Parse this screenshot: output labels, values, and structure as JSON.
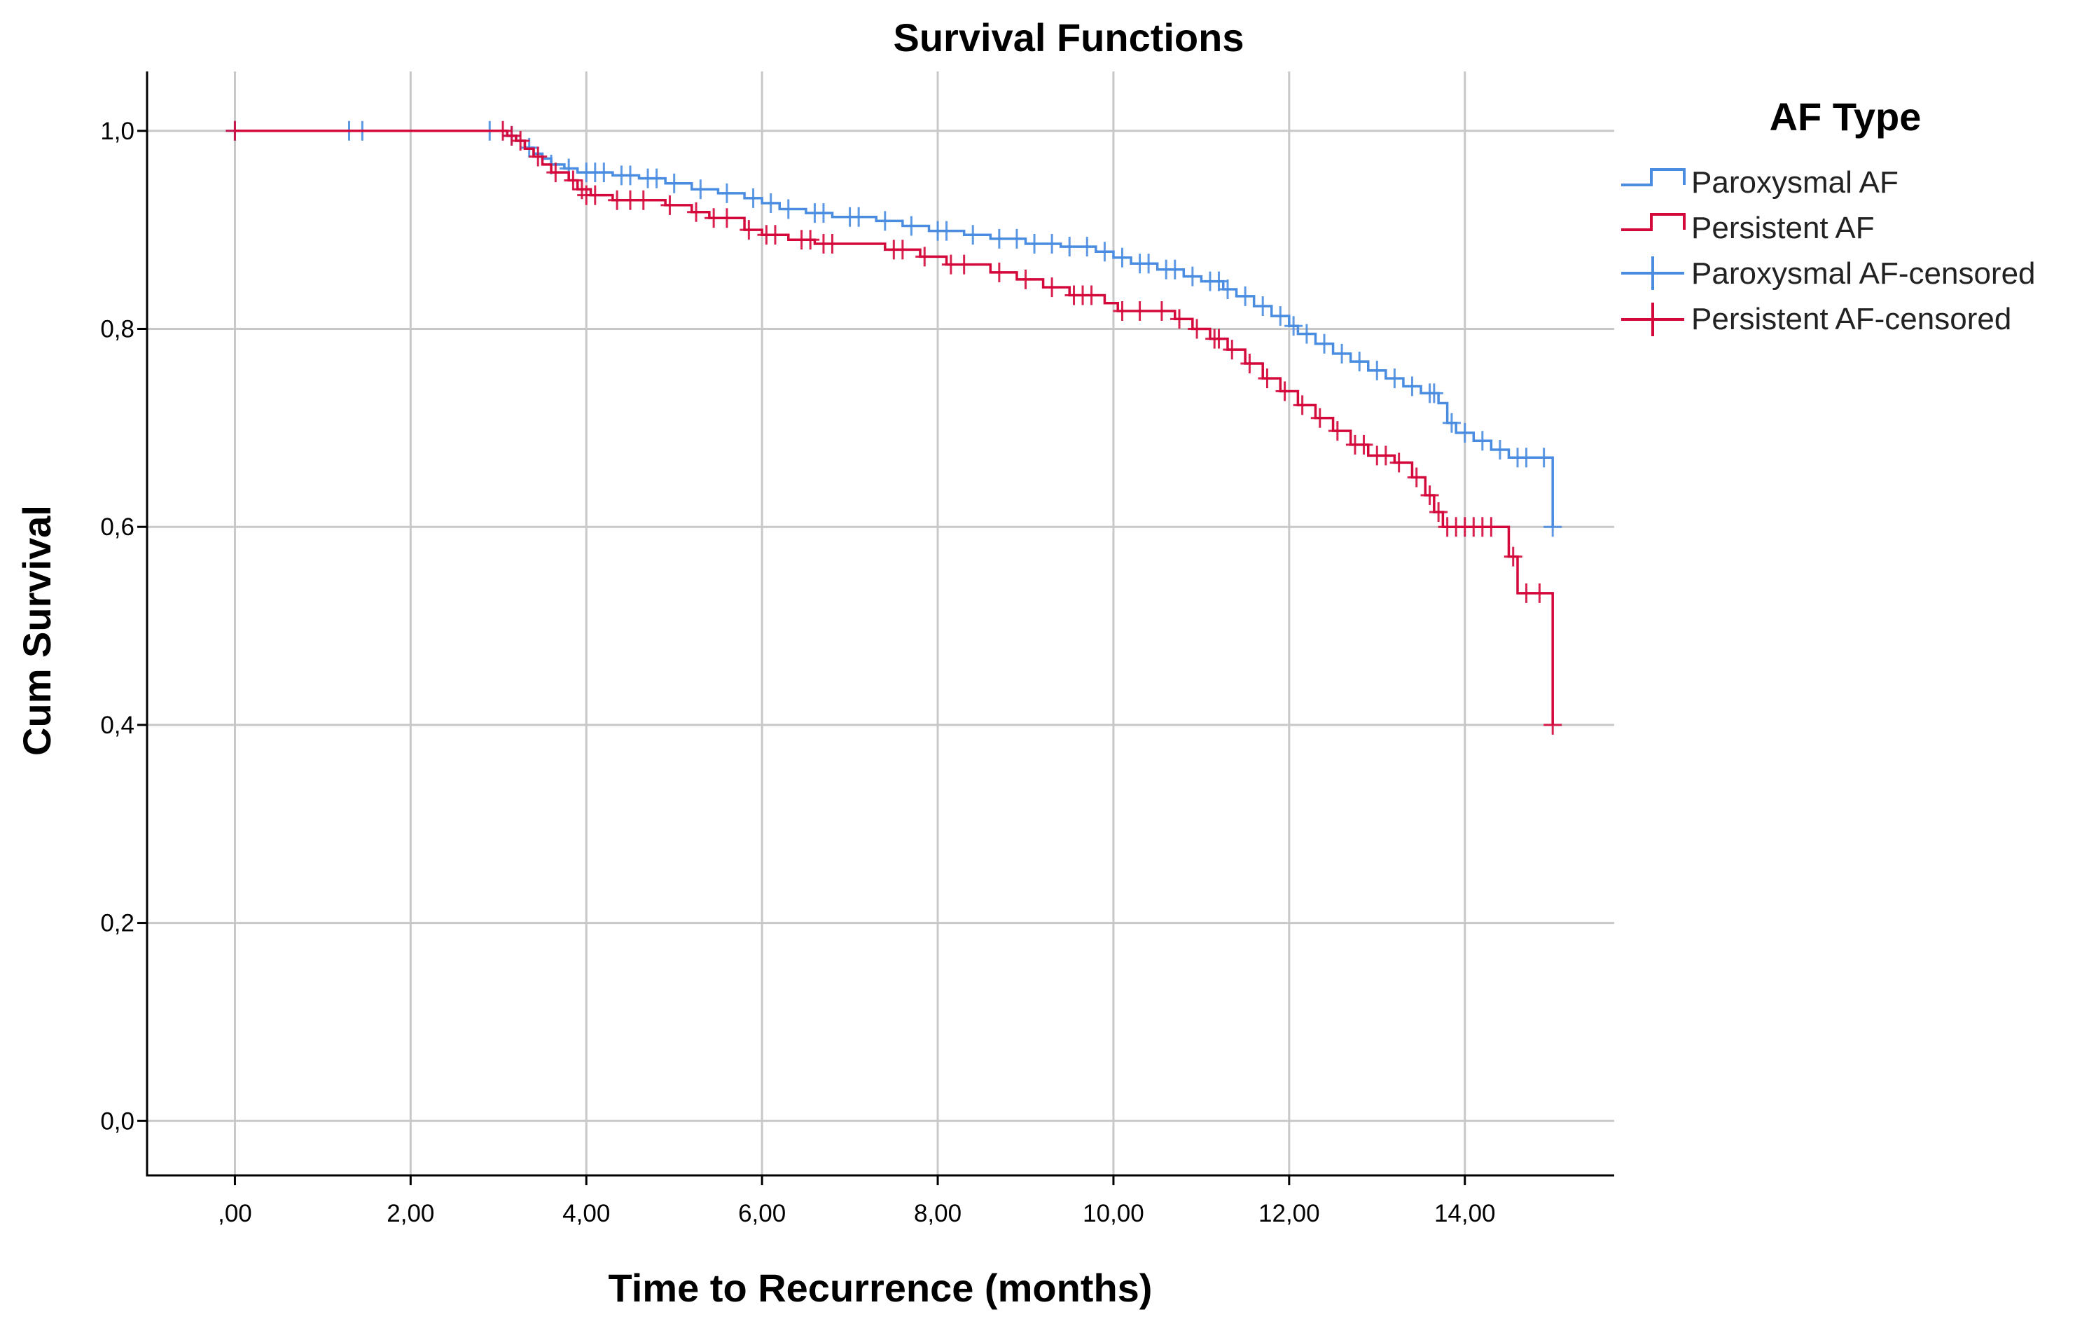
{
  "chart_data": {
    "type": "line",
    "title": "Survival Functions",
    "xlabel": "Time to Recurrence (months)",
    "ylabel": "Cum Survival",
    "xlim": [
      -1,
      15.7
    ],
    "ylim": [
      -0.055,
      1.06
    ],
    "x_ticks": [
      0,
      2,
      4,
      6,
      8,
      10,
      12,
      14
    ],
    "x_tick_labels": [
      ",00",
      "2,00",
      "4,00",
      "6,00",
      "8,00",
      "10,00",
      "12,00",
      "14,00"
    ],
    "y_ticks": [
      0,
      0.2,
      0.4,
      0.6,
      0.8,
      1.0
    ],
    "y_tick_labels": [
      "0,0",
      "0,2",
      "0,4",
      "0,6",
      "0,8",
      "1,0"
    ],
    "grid": true,
    "legend_title": "AF Type",
    "legend_position": "top-right",
    "legend_labels": [
      "Paroxysmal AF",
      "Persistent AF",
      "Paroxysmal AF-censored",
      "Persistent AF-censored"
    ],
    "series": [
      {
        "name": "Paroxysmal AF",
        "color": "#4a8de0",
        "steps": [
          [
            0,
            1.0
          ],
          [
            3.0,
            1.0
          ],
          [
            3.1,
            0.995
          ],
          [
            3.2,
            0.99
          ],
          [
            3.3,
            0.983
          ],
          [
            3.4,
            0.977
          ],
          [
            3.5,
            0.972
          ],
          [
            3.6,
            0.966
          ],
          [
            3.75,
            0.962
          ],
          [
            3.9,
            0.958
          ],
          [
            4.3,
            0.955
          ],
          [
            4.6,
            0.952
          ],
          [
            4.9,
            0.947
          ],
          [
            5.2,
            0.941
          ],
          [
            5.5,
            0.937
          ],
          [
            5.8,
            0.932
          ],
          [
            6.0,
            0.927
          ],
          [
            6.2,
            0.921
          ],
          [
            6.5,
            0.917
          ],
          [
            6.8,
            0.913
          ],
          [
            7.3,
            0.909
          ],
          [
            7.6,
            0.904
          ],
          [
            7.9,
            0.899
          ],
          [
            8.3,
            0.895
          ],
          [
            8.6,
            0.891
          ],
          [
            9.0,
            0.886
          ],
          [
            9.4,
            0.883
          ],
          [
            9.8,
            0.878
          ],
          [
            10.0,
            0.872
          ],
          [
            10.2,
            0.866
          ],
          [
            10.5,
            0.86
          ],
          [
            10.8,
            0.853
          ],
          [
            11.0,
            0.848
          ],
          [
            11.25,
            0.84
          ],
          [
            11.4,
            0.833
          ],
          [
            11.6,
            0.823
          ],
          [
            11.8,
            0.813
          ],
          [
            12.0,
            0.803
          ],
          [
            12.1,
            0.795
          ],
          [
            12.3,
            0.785
          ],
          [
            12.5,
            0.775
          ],
          [
            12.7,
            0.767
          ],
          [
            12.9,
            0.758
          ],
          [
            13.1,
            0.75
          ],
          [
            13.3,
            0.742
          ],
          [
            13.5,
            0.735
          ],
          [
            13.7,
            0.725
          ],
          [
            13.8,
            0.705
          ],
          [
            13.9,
            0.695
          ],
          [
            14.1,
            0.687
          ],
          [
            14.3,
            0.678
          ],
          [
            14.5,
            0.67
          ],
          [
            15.0,
            0.6
          ]
        ],
        "end_x": 15.0,
        "censored": [
          [
            0,
            1.0
          ],
          [
            1.3,
            1.0
          ],
          [
            1.45,
            1.0
          ],
          [
            2.9,
            1.0
          ],
          [
            3.15,
            0.995
          ],
          [
            3.35,
            0.983
          ],
          [
            3.6,
            0.966
          ],
          [
            3.8,
            0.962
          ],
          [
            4.0,
            0.958
          ],
          [
            4.1,
            0.958
          ],
          [
            4.2,
            0.958
          ],
          [
            4.4,
            0.955
          ],
          [
            4.5,
            0.955
          ],
          [
            4.7,
            0.952
          ],
          [
            4.8,
            0.952
          ],
          [
            5.0,
            0.947
          ],
          [
            5.3,
            0.941
          ],
          [
            5.6,
            0.937
          ],
          [
            5.9,
            0.932
          ],
          [
            6.1,
            0.927
          ],
          [
            6.3,
            0.921
          ],
          [
            6.6,
            0.917
          ],
          [
            6.7,
            0.917
          ],
          [
            7.0,
            0.913
          ],
          [
            7.1,
            0.913
          ],
          [
            7.4,
            0.909
          ],
          [
            7.7,
            0.904
          ],
          [
            8.0,
            0.899
          ],
          [
            8.1,
            0.899
          ],
          [
            8.4,
            0.895
          ],
          [
            8.7,
            0.891
          ],
          [
            8.9,
            0.891
          ],
          [
            9.1,
            0.886
          ],
          [
            9.3,
            0.886
          ],
          [
            9.5,
            0.883
          ],
          [
            9.7,
            0.883
          ],
          [
            9.9,
            0.878
          ],
          [
            10.1,
            0.872
          ],
          [
            10.3,
            0.866
          ],
          [
            10.4,
            0.866
          ],
          [
            10.6,
            0.86
          ],
          [
            10.7,
            0.86
          ],
          [
            10.9,
            0.853
          ],
          [
            11.1,
            0.848
          ],
          [
            11.2,
            0.848
          ],
          [
            11.3,
            0.84
          ],
          [
            11.5,
            0.833
          ],
          [
            11.7,
            0.823
          ],
          [
            11.9,
            0.813
          ],
          [
            12.05,
            0.803
          ],
          [
            12.2,
            0.795
          ],
          [
            12.4,
            0.785
          ],
          [
            12.6,
            0.775
          ],
          [
            12.8,
            0.767
          ],
          [
            13.0,
            0.758
          ],
          [
            13.2,
            0.75
          ],
          [
            13.4,
            0.742
          ],
          [
            13.6,
            0.735
          ],
          [
            13.65,
            0.735
          ],
          [
            13.85,
            0.705
          ],
          [
            14.0,
            0.695
          ],
          [
            14.2,
            0.687
          ],
          [
            14.4,
            0.678
          ],
          [
            14.6,
            0.67
          ],
          [
            14.7,
            0.67
          ],
          [
            14.9,
            0.67
          ],
          [
            15.0,
            0.6
          ]
        ]
      },
      {
        "name": "Persistent AF",
        "color": "#d4093b",
        "steps": [
          [
            0,
            1.0
          ],
          [
            3.0,
            1.0
          ],
          [
            3.1,
            0.995
          ],
          [
            3.2,
            0.99
          ],
          [
            3.3,
            0.982
          ],
          [
            3.4,
            0.974
          ],
          [
            3.5,
            0.966
          ],
          [
            3.6,
            0.958
          ],
          [
            3.8,
            0.95
          ],
          [
            3.9,
            0.941
          ],
          [
            4.05,
            0.935
          ],
          [
            4.3,
            0.93
          ],
          [
            4.9,
            0.925
          ],
          [
            5.2,
            0.918
          ],
          [
            5.4,
            0.912
          ],
          [
            5.8,
            0.9
          ],
          [
            6.0,
            0.895
          ],
          [
            6.3,
            0.89
          ],
          [
            6.6,
            0.886
          ],
          [
            7.4,
            0.88
          ],
          [
            7.8,
            0.873
          ],
          [
            8.1,
            0.865
          ],
          [
            8.6,
            0.857
          ],
          [
            8.9,
            0.85
          ],
          [
            9.2,
            0.842
          ],
          [
            9.5,
            0.834
          ],
          [
            9.9,
            0.826
          ],
          [
            10.05,
            0.818
          ],
          [
            10.7,
            0.81
          ],
          [
            10.9,
            0.8
          ],
          [
            11.1,
            0.79
          ],
          [
            11.3,
            0.779
          ],
          [
            11.5,
            0.765
          ],
          [
            11.7,
            0.75
          ],
          [
            11.9,
            0.737
          ],
          [
            12.1,
            0.723
          ],
          [
            12.3,
            0.71
          ],
          [
            12.5,
            0.697
          ],
          [
            12.7,
            0.683
          ],
          [
            12.9,
            0.672
          ],
          [
            13.2,
            0.665
          ],
          [
            13.4,
            0.65
          ],
          [
            13.55,
            0.632
          ],
          [
            13.65,
            0.615
          ],
          [
            13.75,
            0.6
          ],
          [
            14.5,
            0.57
          ],
          [
            14.6,
            0.533
          ],
          [
            15.0,
            0.4
          ]
        ],
        "end_x": 15.0,
        "censored": [
          [
            0,
            1.0
          ],
          [
            3.05,
            1.0
          ],
          [
            3.15,
            0.995
          ],
          [
            3.25,
            0.99
          ],
          [
            3.45,
            0.974
          ],
          [
            3.65,
            0.958
          ],
          [
            3.85,
            0.95
          ],
          [
            3.95,
            0.941
          ],
          [
            4.0,
            0.935
          ],
          [
            4.1,
            0.935
          ],
          [
            4.35,
            0.93
          ],
          [
            4.5,
            0.93
          ],
          [
            4.65,
            0.93
          ],
          [
            4.95,
            0.925
          ],
          [
            5.25,
            0.918
          ],
          [
            5.45,
            0.912
          ],
          [
            5.6,
            0.912
          ],
          [
            5.85,
            0.9
          ],
          [
            6.05,
            0.895
          ],
          [
            6.15,
            0.895
          ],
          [
            6.45,
            0.89
          ],
          [
            6.55,
            0.89
          ],
          [
            6.7,
            0.886
          ],
          [
            6.8,
            0.886
          ],
          [
            7.5,
            0.88
          ],
          [
            7.6,
            0.88
          ],
          [
            7.85,
            0.873
          ],
          [
            8.15,
            0.865
          ],
          [
            8.3,
            0.865
          ],
          [
            8.7,
            0.857
          ],
          [
            9.0,
            0.85
          ],
          [
            9.3,
            0.842
          ],
          [
            9.55,
            0.834
          ],
          [
            9.65,
            0.834
          ],
          [
            9.75,
            0.834
          ],
          [
            10.1,
            0.818
          ],
          [
            10.3,
            0.818
          ],
          [
            10.55,
            0.818
          ],
          [
            10.75,
            0.81
          ],
          [
            10.95,
            0.8
          ],
          [
            11.15,
            0.79
          ],
          [
            11.2,
            0.79
          ],
          [
            11.35,
            0.779
          ],
          [
            11.55,
            0.765
          ],
          [
            11.75,
            0.75
          ],
          [
            11.95,
            0.737
          ],
          [
            12.15,
            0.723
          ],
          [
            12.35,
            0.71
          ],
          [
            12.55,
            0.697
          ],
          [
            12.75,
            0.683
          ],
          [
            12.85,
            0.683
          ],
          [
            13.0,
            0.672
          ],
          [
            13.1,
            0.672
          ],
          [
            13.25,
            0.665
          ],
          [
            13.45,
            0.65
          ],
          [
            13.6,
            0.632
          ],
          [
            13.7,
            0.615
          ],
          [
            13.8,
            0.6
          ],
          [
            13.9,
            0.6
          ],
          [
            14.0,
            0.6
          ],
          [
            14.1,
            0.6
          ],
          [
            14.2,
            0.6
          ],
          [
            14.3,
            0.6
          ],
          [
            14.55,
            0.57
          ],
          [
            14.7,
            0.533
          ],
          [
            14.85,
            0.533
          ],
          [
            15.0,
            0.4
          ]
        ]
      }
    ]
  }
}
